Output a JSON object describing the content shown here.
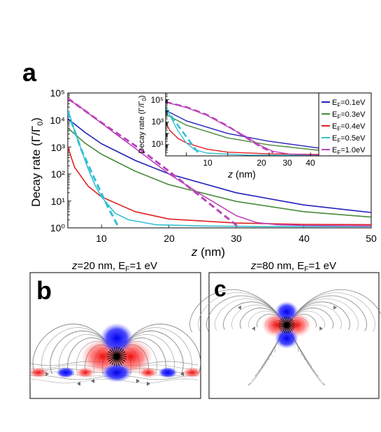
{
  "panel_labels": {
    "a": "a",
    "b": "b",
    "c": "c"
  },
  "captions": {
    "b": {
      "z": "z",
      "rest": "=20 nm,   E",
      "sub": "F",
      "tail": "=1 eV"
    },
    "c": {
      "z": "z",
      "rest": "=80 nm, E",
      "sub": "F",
      "tail": "=1 eV"
    }
  },
  "chart_data": [
    {
      "type": "line",
      "ylabel": {
        "main": "Decay rate (Γ/Γ",
        "sub": "0",
        "close": ")"
      },
      "xlabel": {
        "var": "z",
        "unit": " (nm)"
      },
      "x_ticks": [
        "10",
        "20",
        "30",
        "40",
        "50"
      ],
      "y_ticks": [
        "10⁰",
        "10¹",
        "10²",
        "10³",
        "10⁴",
        "10⁵"
      ],
      "xlim": [
        5,
        50
      ],
      "ylim": [
        0,
        5
      ],
      "yscale": "log",
      "series": [
        {
          "name": "EF=0.1eV",
          "label_pre": "E",
          "label_sub": "F",
          "label_post": "=0.1eV",
          "color": "#2222bb",
          "x": [
            5,
            7.5,
            10,
            15,
            20,
            30,
            40,
            50
          ],
          "log10_y": [
            4.05,
            3.55,
            3.12,
            2.5,
            2.0,
            1.3,
            0.85,
            0.57
          ]
        },
        {
          "name": "EF=0.3eV",
          "label_pre": "E",
          "label_sub": "F",
          "label_post": "=0.3eV",
          "color": "#4a8a3c",
          "x": [
            5,
            7.5,
            10,
            15,
            20,
            30,
            40,
            50
          ],
          "log10_y": [
            3.7,
            3.15,
            2.73,
            2.1,
            1.6,
            0.98,
            0.6,
            0.4
          ]
        },
        {
          "name": "EF=0.4eV",
          "label_pre": "E",
          "label_sub": "F",
          "label_post": "=0.4eV",
          "color": "#e02020",
          "x": [
            5,
            6,
            8,
            10,
            15,
            20,
            30,
            40,
            50
          ],
          "log10_y": [
            3.0,
            2.25,
            1.55,
            1.15,
            0.6,
            0.33,
            0.18,
            0.13,
            0.12
          ]
        },
        {
          "name": "EF=0.5eV",
          "label_pre": "E",
          "label_sub": "F",
          "label_post": "=0.5eV",
          "color": "#33bfd3",
          "x": [
            5,
            6,
            7,
            8,
            9,
            10,
            12,
            14,
            18,
            25,
            35,
            50
          ],
          "log10_y": [
            4.4,
            3.6,
            2.9,
            2.2,
            1.6,
            1.15,
            0.55,
            0.3,
            0.12,
            0.07,
            0.05,
            0.05
          ]
        },
        {
          "name": "EF=1.0eV",
          "label_pre": "E",
          "label_sub": "F",
          "label_post": "=1.0eV",
          "color": "#bb44bb",
          "x": [
            5,
            7,
            10,
            12,
            15,
            20,
            25,
            30,
            33,
            36,
            40,
            50
          ],
          "log10_y": [
            4.78,
            4.45,
            3.88,
            3.5,
            2.95,
            2.0,
            1.2,
            0.45,
            0.2,
            0.12,
            0.09,
            0.07
          ]
        }
      ],
      "asymptotes": [
        {
          "color": "#33bfd3",
          "x": [
            5,
            7,
            9,
            11,
            13
          ],
          "log10_y": [
            4.3,
            2.9,
            1.8,
            0.75,
            -0.2
          ]
        },
        {
          "color": "#bb44bb",
          "x": [
            5,
            10,
            15,
            20,
            25,
            28,
            31
          ],
          "log10_y": [
            4.8,
            3.9,
            3.05,
            2.1,
            1.1,
            0.5,
            -0.1
          ]
        }
      ]
    },
    {
      "type": "line",
      "inset": true,
      "ylabel": {
        "main": "Decay rate (Γ/Γ",
        "sub": "0",
        "close": ")"
      },
      "xlabel": {
        "var": "z",
        "unit": " (nm)"
      },
      "x_ticks": [
        "10",
        "20",
        "30",
        "40"
      ],
      "y_ticks": [
        "10¹",
        "10³",
        "10⁵"
      ],
      "xlim": [
        5,
        42
      ],
      "ylim": [
        0,
        5.6
      ],
      "yscale": "log",
      "series": [
        {
          "name": "EF=0.1eV",
          "color": "#2222bb",
          "x": [
            5,
            10,
            20,
            30,
            42
          ],
          "log10_y": [
            4.05,
            3.12,
            2.0,
            1.3,
            0.7
          ]
        },
        {
          "name": "EF=0.3eV",
          "color": "#4a8a3c",
          "x": [
            5,
            10,
            20,
            30,
            42
          ],
          "log10_y": [
            3.7,
            2.73,
            1.6,
            0.98,
            0.5
          ]
        },
        {
          "name": "EF=0.4eV",
          "color": "#e02020",
          "x": [
            5,
            6,
            8,
            10,
            15,
            20,
            30,
            42
          ],
          "log10_y": [
            3.0,
            2.25,
            1.55,
            1.15,
            0.6,
            0.33,
            0.18,
            0.13
          ]
        },
        {
          "name": "EF=0.5eV",
          "color": "#33bfd3",
          "x": [
            5,
            6,
            7,
            8,
            10,
            12,
            15,
            25,
            42
          ],
          "log10_y": [
            4.4,
            3.6,
            2.9,
            2.2,
            1.15,
            0.55,
            0.25,
            0.07,
            0.05
          ]
        },
        {
          "name": "EF=1.0eV",
          "color": "#bb44bb",
          "x": [
            5,
            10,
            15,
            20,
            25,
            28,
            31,
            35,
            42
          ],
          "log10_y": [
            4.78,
            4.3,
            3.6,
            2.6,
            1.6,
            0.9,
            0.4,
            0.15,
            0.08
          ]
        }
      ],
      "asymptotes": [
        {
          "color": "#33bfd3",
          "x": [
            5,
            7,
            9,
            11,
            13
          ],
          "log10_y": [
            4.3,
            3.2,
            2.2,
            1.2,
            0.2
          ]
        },
        {
          "color": "#bb44bb",
          "x": [
            5,
            10,
            15,
            20,
            25,
            28,
            31
          ],
          "log10_y": [
            4.8,
            4.35,
            3.65,
            2.65,
            1.5,
            0.8,
            0.3
          ]
        }
      ]
    }
  ]
}
